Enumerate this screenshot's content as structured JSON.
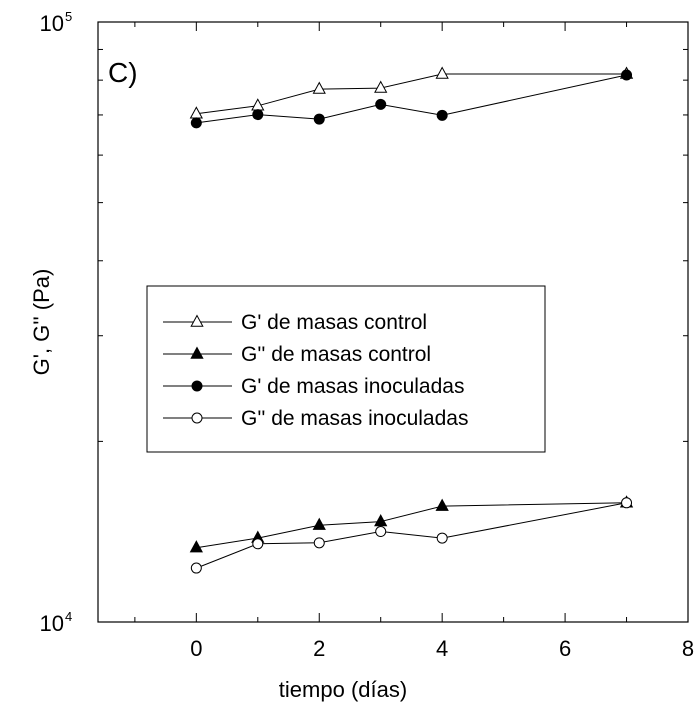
{
  "chart_data": {
    "type": "line",
    "panel_label": "C)",
    "xlabel": "tiempo (días)",
    "ylabel": "G', G'' (Pa)",
    "xlim": [
      -1.6,
      8
    ],
    "ylim": [
      10000,
      100000
    ],
    "yscale": "log",
    "x_ticks": [
      0,
      2,
      4,
      6,
      8
    ],
    "x_tick_labels": [
      "0",
      "2",
      "4",
      "6",
      "8"
    ],
    "y_tick_labels": [
      {
        "base": "10",
        "exp": "4",
        "value": 10000
      },
      {
        "base": "10",
        "exp": "5",
        "value": 100000
      }
    ],
    "grid": false,
    "legend_position": "center-left",
    "series": [
      {
        "name": "G' de masas control",
        "marker": "triangle-open",
        "x": [
          0,
          1,
          2,
          3,
          4,
          7
        ],
        "y": [
          70300,
          72500,
          77300,
          77600,
          81900,
          81900
        ]
      },
      {
        "name": "G'' de masas control",
        "marker": "triangle-filled",
        "x": [
          0,
          1,
          2,
          3,
          4,
          7
        ],
        "y": [
          13300,
          13800,
          14500,
          14700,
          15600,
          15800
        ]
      },
      {
        "name": "G' de masas inoculadas",
        "marker": "circle-filled",
        "x": [
          0,
          1,
          2,
          3,
          4,
          7
        ],
        "y": [
          67900,
          70100,
          68900,
          72900,
          69900,
          81600
        ]
      },
      {
        "name": "G'' de masas inoculadas",
        "marker": "circle-open",
        "x": [
          0,
          1,
          2,
          3,
          4,
          7
        ],
        "y": [
          12300,
          13500,
          13550,
          14150,
          13800,
          15800
        ]
      }
    ]
  }
}
